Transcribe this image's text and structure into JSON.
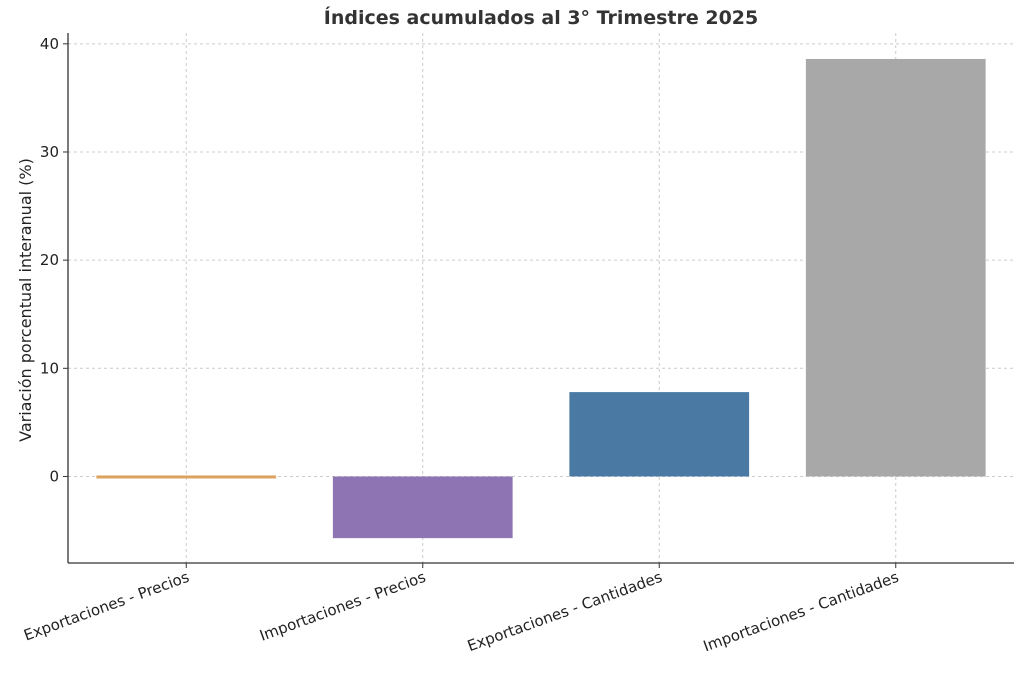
{
  "chart_data": {
    "type": "bar",
    "title": "Índices acumulados al 3° Trimestre 2025",
    "xlabel": "",
    "ylabel": "Variación porcentual interanual (%)",
    "categories": [
      "Exportaciones - Precios",
      "Importaciones - Precios",
      "Exportaciones - Cantidades",
      "Importaciones - Cantidades"
    ],
    "values": [
      -0.2,
      -5.7,
      7.8,
      38.6
    ],
    "colors": [
      "#dda15e",
      "#8e74b2",
      "#4a7aa3",
      "#a8a8a8"
    ],
    "ylim": [
      -8,
      41
    ],
    "yticks": [
      0,
      10,
      20,
      30,
      40
    ],
    "grid": true,
    "legend": "none"
  }
}
